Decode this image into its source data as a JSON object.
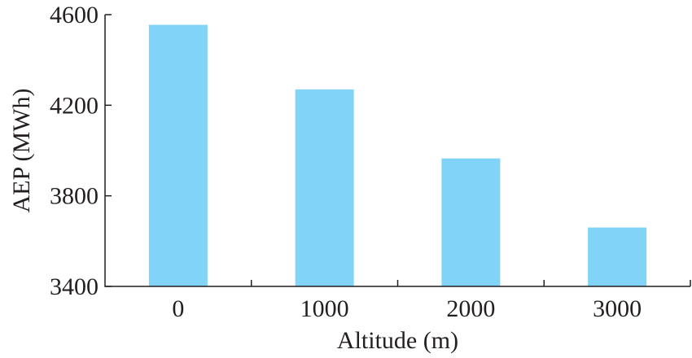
{
  "chart_data": {
    "type": "bar",
    "categories": [
      "0",
      "1000",
      "2000",
      "3000"
    ],
    "values": [
      4555,
      4270,
      3965,
      3660
    ],
    "title": "",
    "xlabel": "Altitude (m)",
    "ylabel": "AEP (MWh)",
    "ylim": [
      3400,
      4600
    ],
    "yticks": [
      "3400",
      "3800",
      "4200",
      "4600"
    ],
    "grid": false,
    "legend": "none",
    "bar_color": "#81d4f7",
    "axis_color": "#231f20"
  }
}
